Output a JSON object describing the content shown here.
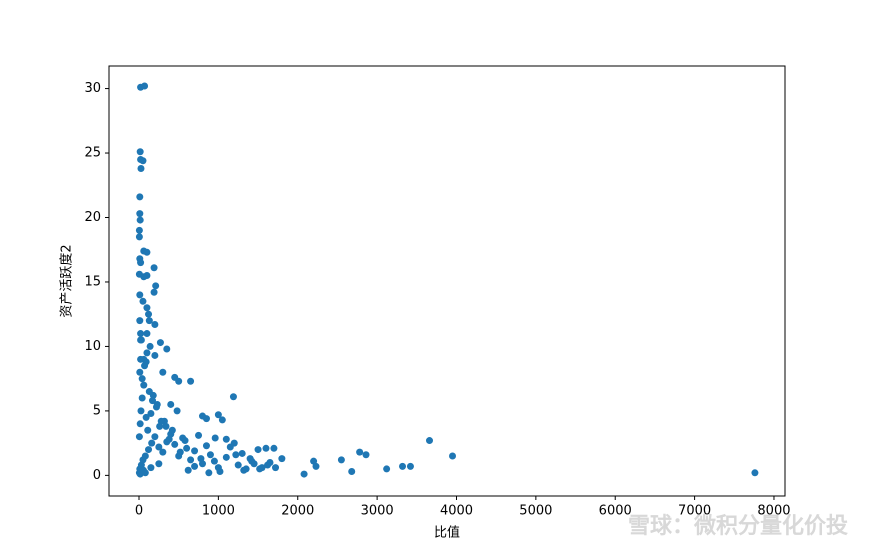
{
  "chart_data": {
    "type": "scatter",
    "xlabel": "比值",
    "ylabel": "资产活跃度2",
    "watermark": "雪球：微积分量化价投",
    "color": "#1f77b4",
    "xlim": [
      -378,
      8139
    ],
    "ylim": [
      -1.6,
      31.75
    ],
    "xticks": [
      0,
      1000,
      2000,
      3000,
      4000,
      5000,
      6000,
      7000,
      8000
    ],
    "yticks": [
      0,
      5,
      10,
      15,
      20,
      25,
      30
    ],
    "x": [
      20,
      70,
      15,
      20,
      50,
      25,
      10,
      10,
      15,
      5,
      5,
      60,
      100,
      10,
      20,
      5,
      60,
      100,
      190,
      210,
      190,
      10,
      50,
      100,
      120,
      130,
      200,
      100,
      270,
      20,
      140,
      200,
      350,
      450,
      500,
      650,
      300,
      1190,
      400,
      480,
      800,
      850,
      1000,
      1050,
      1100,
      1200,
      1500,
      1600,
      1700,
      1800,
      2080,
      2200,
      2230,
      2550,
      2680,
      2780,
      2860,
      3120,
      3320,
      3420,
      3660,
      3950,
      7760,
      10,
      30,
      50,
      80,
      120,
      160,
      200,
      250,
      300,
      350,
      400,
      450,
      500,
      550,
      600,
      650,
      700,
      750,
      800,
      850,
      900,
      950,
      1000,
      1100,
      1150,
      1250,
      1300,
      1350,
      1400,
      1450,
      1550,
      1650,
      5,
      15,
      25,
      40,
      60,
      90,
      110,
      150,
      180,
      220,
      260,
      320,
      380,
      420,
      520,
      580,
      620,
      700,
      780,
      880,
      960,
      1020,
      1220,
      1320,
      1420,
      1520,
      1620,
      1720,
      10,
      20,
      40,
      70,
      100,
      130,
      170,
      230,
      280,
      340,
      10,
      20,
      30,
      60,
      90,
      5,
      15,
      35,
      55,
      80,
      150,
      250
    ],
    "values": [
      30.1,
      30.2,
      25.1,
      24.5,
      24.4,
      23.8,
      21.6,
      20.3,
      19.8,
      19,
      18.5,
      17.4,
      17.3,
      16.8,
      16.5,
      15.6,
      15.4,
      15.5,
      16.1,
      14.7,
      14.2,
      14,
      13.5,
      13,
      12.5,
      12,
      11.7,
      11,
      10.3,
      10.5,
      10,
      9.3,
      9.8,
      7.6,
      7.3,
      7.3,
      8,
      6.1,
      5.5,
      5,
      4.6,
      4.4,
      4.7,
      4.3,
      2.8,
      2.5,
      2,
      2.1,
      2.1,
      1.3,
      0.1,
      1.1,
      0.7,
      1.2,
      0.3,
      1.8,
      1.6,
      0.5,
      0.7,
      0.7,
      2.7,
      1.5,
      0.2,
      0.5,
      0.8,
      1.2,
      1.5,
      2,
      2.5,
      3,
      2.2,
      1.8,
      2.6,
      3.2,
      2.4,
      1.5,
      2.9,
      2.1,
      1.2,
      1.9,
      3.1,
      0.9,
      2.3,
      1.6,
      1.1,
      0.6,
      1.4,
      2.2,
      0.8,
      1.7,
      0.5,
      1.3,
      0.9,
      0.6,
      1,
      3,
      4,
      5,
      6,
      7,
      4.5,
      3.5,
      4.8,
      6.2,
      5.3,
      3.8,
      4.2,
      2.8,
      3.5,
      1.8,
      2.7,
      0.4,
      0.7,
      1.3,
      0.2,
      2.9,
      0.3,
      1.6,
      0.4,
      1.1,
      0.5,
      0.8,
      0.6,
      8,
      9,
      7.5,
      8.5,
      9.5,
      6.5,
      5.8,
      5.5,
      4.2,
      3.8,
      12,
      11,
      10.5,
      9,
      8.8,
      0.2,
      0.1,
      0.3,
      0.4,
      0.2,
      0.6,
      0.9
    ]
  }
}
